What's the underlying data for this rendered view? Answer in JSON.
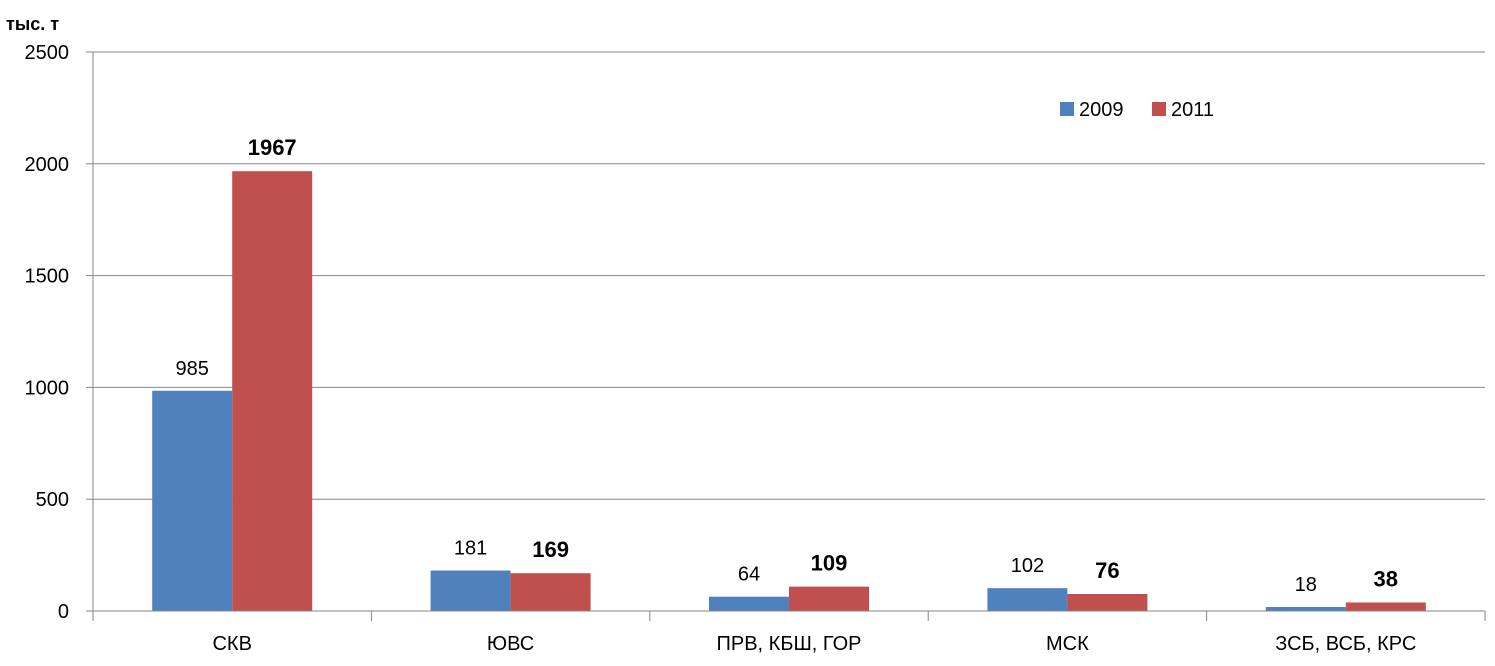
{
  "chart_data": {
    "type": "bar",
    "unit_label": "тыс. т",
    "categories": [
      "СКВ",
      "ЮВС",
      "ПРВ, КБШ, ГОР",
      "МСК",
      "ЗСБ, ВСБ, КРС"
    ],
    "series": [
      {
        "name": "2009",
        "values": [
          985,
          181,
          64,
          102,
          18
        ],
        "color": "#4F81BD",
        "label_bold": false
      },
      {
        "name": "2011",
        "values": [
          1967,
          169,
          109,
          76,
          38
        ],
        "color": "#C0504D",
        "label_bold": true
      }
    ],
    "ylim": [
      0,
      2500
    ],
    "yticks": [
      0,
      500,
      1000,
      1500,
      2000,
      2500
    ],
    "grid": true,
    "legend_position": "top-right",
    "gridline_color": "#868686"
  }
}
